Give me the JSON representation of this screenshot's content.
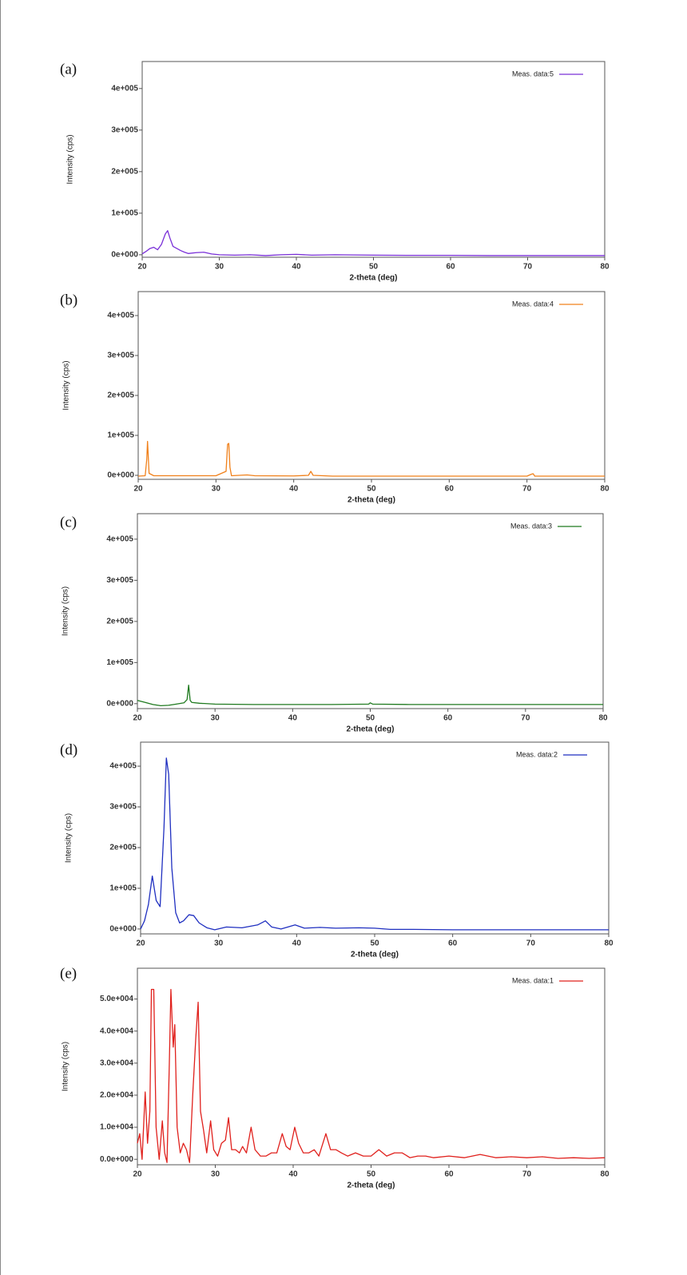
{
  "chart_data": [
    {
      "type": "line",
      "panel_label": "(a)",
      "xlabel": "2-theta (deg)",
      "ylabel": "Intensity (cps)",
      "legend": "upper right",
      "xlim": [
        20,
        80
      ],
      "ylim": [
        -6000,
        465000
      ],
      "xticks": [
        20,
        30,
        40,
        50,
        60,
        70,
        80
      ],
      "yticks": [
        {
          "value": 0,
          "label": "0e+000"
        },
        {
          "value": 100000,
          "label": "1e+005"
        },
        {
          "value": 200000,
          "label": "2e+005"
        },
        {
          "value": 300000,
          "label": "3e+005"
        },
        {
          "value": 400000,
          "label": "4e+005"
        }
      ],
      "x": [
        20,
        20.5,
        21,
        21.5,
        22,
        22.5,
        23,
        23.3,
        23.6,
        24,
        24.5,
        25,
        25.5,
        26,
        27,
        28,
        29,
        30,
        32,
        34,
        36,
        38,
        40,
        42,
        45,
        50,
        55,
        60,
        65,
        70,
        75,
        80
      ],
      "series": [
        {
          "name": "Meas. data:5",
          "color": "#7a30d8",
          "values": [
            2000,
            8000,
            15000,
            18000,
            12000,
            25000,
            50000,
            58000,
            40000,
            20000,
            15000,
            10000,
            6000,
            3000,
            5000,
            6000,
            2000,
            0,
            -1000,
            0,
            -2000,
            0,
            1000,
            -1000,
            0,
            -1000,
            -1500,
            -1500,
            -2000,
            -2000,
            -2000,
            -2000
          ]
        }
      ]
    },
    {
      "type": "line",
      "panel_label": "(b)",
      "xlabel": "2-theta (deg)",
      "ylabel": "Intensity (cps)",
      "legend": "upper right",
      "xlim": [
        20,
        80
      ],
      "ylim": [
        -10000,
        460000
      ],
      "xticks": [
        20,
        30,
        40,
        50,
        60,
        70,
        80
      ],
      "yticks": [
        {
          "value": 0,
          "label": "0e+000"
        },
        {
          "value": 100000,
          "label": "1e+005"
        },
        {
          "value": 200000,
          "label": "2e+005"
        },
        {
          "value": 300000,
          "label": "3e+005"
        },
        {
          "value": 400000,
          "label": "4e+005"
        }
      ],
      "x": [
        20,
        20.9,
        21.1,
        21.2,
        21.4,
        22,
        25,
        30,
        31.3,
        31.5,
        31.65,
        31.8,
        32,
        34,
        35,
        40,
        41.9,
        42.2,
        42.5,
        45,
        50,
        55,
        60,
        65,
        70,
        70.6,
        70.8,
        71,
        75,
        80
      ],
      "series": [
        {
          "name": "Meas. data:4",
          "color": "#f0801a",
          "values": [
            -2000,
            -1000,
            40000,
            85000,
            5000,
            -1000,
            -1000,
            -1000,
            10000,
            78000,
            80000,
            20000,
            -1000,
            1000,
            -1000,
            -1500,
            0,
            10000,
            0,
            -2000,
            -2000,
            -2000,
            -2000,
            -2000,
            -2000,
            3000,
            4000,
            -2000,
            -2000,
            -2000
          ]
        }
      ]
    },
    {
      "type": "line",
      "panel_label": "(c)",
      "xlabel": "2-theta (deg)",
      "ylabel": "Intensity (cps)",
      "legend": "upper right",
      "xlim": [
        20,
        80
      ],
      "ylim": [
        -12000,
        462000
      ],
      "xticks": [
        20,
        30,
        40,
        50,
        60,
        70,
        80
      ],
      "yticks": [
        {
          "value": 0,
          "label": "0e+000"
        },
        {
          "value": 100000,
          "label": "1e+005"
        },
        {
          "value": 200000,
          "label": "2e+005"
        },
        {
          "value": 300000,
          "label": "3e+005"
        },
        {
          "value": 400000,
          "label": "4e+005"
        }
      ],
      "x": [
        20,
        21,
        22,
        23,
        24,
        25,
        26,
        26.4,
        26.6,
        26.8,
        27,
        28,
        30,
        35,
        40,
        45,
        49.8,
        50,
        50.3,
        55,
        60,
        65,
        70,
        75,
        80
      ],
      "series": [
        {
          "name": "Meas. data:3",
          "color": "#1f7a1f",
          "values": [
            8000,
            3000,
            -2000,
            -5000,
            -4000,
            -1000,
            2000,
            10000,
            45000,
            8000,
            3000,
            1000,
            -1000,
            -2000,
            -2000,
            -2000,
            -1000,
            2000,
            -1000,
            -2000,
            -2000,
            -2000,
            -2000,
            -2000,
            -2000
          ]
        }
      ]
    },
    {
      "type": "line",
      "panel_label": "(d)",
      "xlabel": "2-theta (deg)",
      "ylabel": "Intensity (cps)",
      "legend": "upper right",
      "xlim": [
        20,
        80
      ],
      "ylim": [
        -12000,
        459000
      ],
      "xticks": [
        20,
        30,
        40,
        50,
        60,
        70,
        80
      ],
      "yticks": [
        {
          "value": 0,
          "label": "0e+000"
        },
        {
          "value": 100000,
          "label": "1e+005"
        },
        {
          "value": 200000,
          "label": "2e+005"
        },
        {
          "value": 300000,
          "label": "3e+005"
        },
        {
          "value": 400000,
          "label": "4e+005"
        }
      ],
      "x": [
        20,
        20.5,
        21,
        21.5,
        22,
        22.5,
        23,
        23.3,
        23.6,
        24,
        24.5,
        25,
        25.5,
        26.2,
        26.8,
        27.5,
        28.5,
        29.5,
        31,
        33,
        35,
        36,
        36.8,
        38,
        39.8,
        41,
        43,
        45,
        48,
        50,
        52,
        55,
        60,
        65,
        70,
        75,
        80
      ],
      "series": [
        {
          "name": "Meas. data:2",
          "color": "#1f2fc0",
          "values": [
            0,
            20000,
            60000,
            130000,
            70000,
            55000,
            250000,
            420000,
            380000,
            150000,
            40000,
            15000,
            20000,
            35000,
            33000,
            15000,
            3000,
            -2000,
            5000,
            3000,
            10000,
            20000,
            5000,
            0,
            10000,
            2000,
            4000,
            2000,
            3000,
            2000,
            -1000,
            -1000,
            -2000,
            -2000,
            -2000,
            -2000,
            -2000
          ]
        }
      ]
    },
    {
      "type": "line",
      "panel_label": "(e)",
      "xlabel": "2-theta (deg)",
      "ylabel": "Intensity (cps)",
      "legend": "upper right",
      "xlim": [
        20,
        80
      ],
      "ylim": [
        -1700,
        59600
      ],
      "xticks": [
        20,
        30,
        40,
        50,
        60,
        70,
        80
      ],
      "yticks": [
        {
          "value": 0,
          "label": "0.0e+000"
        },
        {
          "value": 10000,
          "label": "1.0e+004"
        },
        {
          "value": 20000,
          "label": "2.0e+004"
        },
        {
          "value": 30000,
          "label": "3.0e+004"
        },
        {
          "value": 40000,
          "label": "4.0e+004"
        },
        {
          "value": 50000,
          "label": "5.0e+004"
        }
      ],
      "x": [
        20,
        20.3,
        20.6,
        21,
        21.3,
        21.6,
        21.8,
        22.1,
        22.4,
        22.8,
        23.2,
        23.5,
        23.8,
        24.1,
        24.3,
        24.6,
        24.8,
        25.1,
        25.5,
        25.9,
        26.3,
        26.7,
        27.1,
        27.5,
        27.8,
        28.1,
        28.5,
        28.9,
        29.4,
        29.8,
        30.3,
        30.8,
        31.3,
        31.7,
        32.1,
        32.6,
        33.1,
        33.5,
        34,
        34.6,
        35.1,
        35.8,
        36.5,
        37.2,
        37.9,
        38.6,
        39.1,
        39.6,
        40.2,
        40.7,
        41.3,
        42,
        42.7,
        43.3,
        44.2,
        44.8,
        45.5,
        46.2,
        47,
        48,
        49,
        50,
        51,
        52,
        53,
        54,
        55,
        56,
        57,
        58,
        60,
        62,
        64,
        66,
        68,
        70,
        72,
        74,
        76,
        78,
        80
      ],
      "series": [
        {
          "name": "Meas. data:1",
          "color": "#e0201c",
          "values": [
            5000,
            8000,
            0,
            21000,
            5000,
            15000,
            53000,
            53000,
            10000,
            0,
            12000,
            2000,
            -1000,
            30000,
            53000,
            35000,
            42000,
            10000,
            2000,
            5000,
            3000,
            -1000,
            20000,
            38000,
            49000,
            15000,
            9000,
            2000,
            12000,
            3000,
            1000,
            5000,
            6000,
            13000,
            3000,
            3000,
            2000,
            4000,
            2000,
            10000,
            3000,
            1000,
            1000,
            2000,
            2000,
            8000,
            4000,
            3000,
            10000,
            5000,
            2000,
            2000,
            3000,
            1000,
            8000,
            3000,
            3000,
            2000,
            1000,
            2000,
            1000,
            1000,
            3000,
            1000,
            2000,
            2000,
            500,
            1000,
            1000,
            500,
            1000,
            500,
            1500,
            500,
            800,
            500,
            800,
            300,
            500,
            300,
            500
          ]
        }
      ]
    }
  ]
}
